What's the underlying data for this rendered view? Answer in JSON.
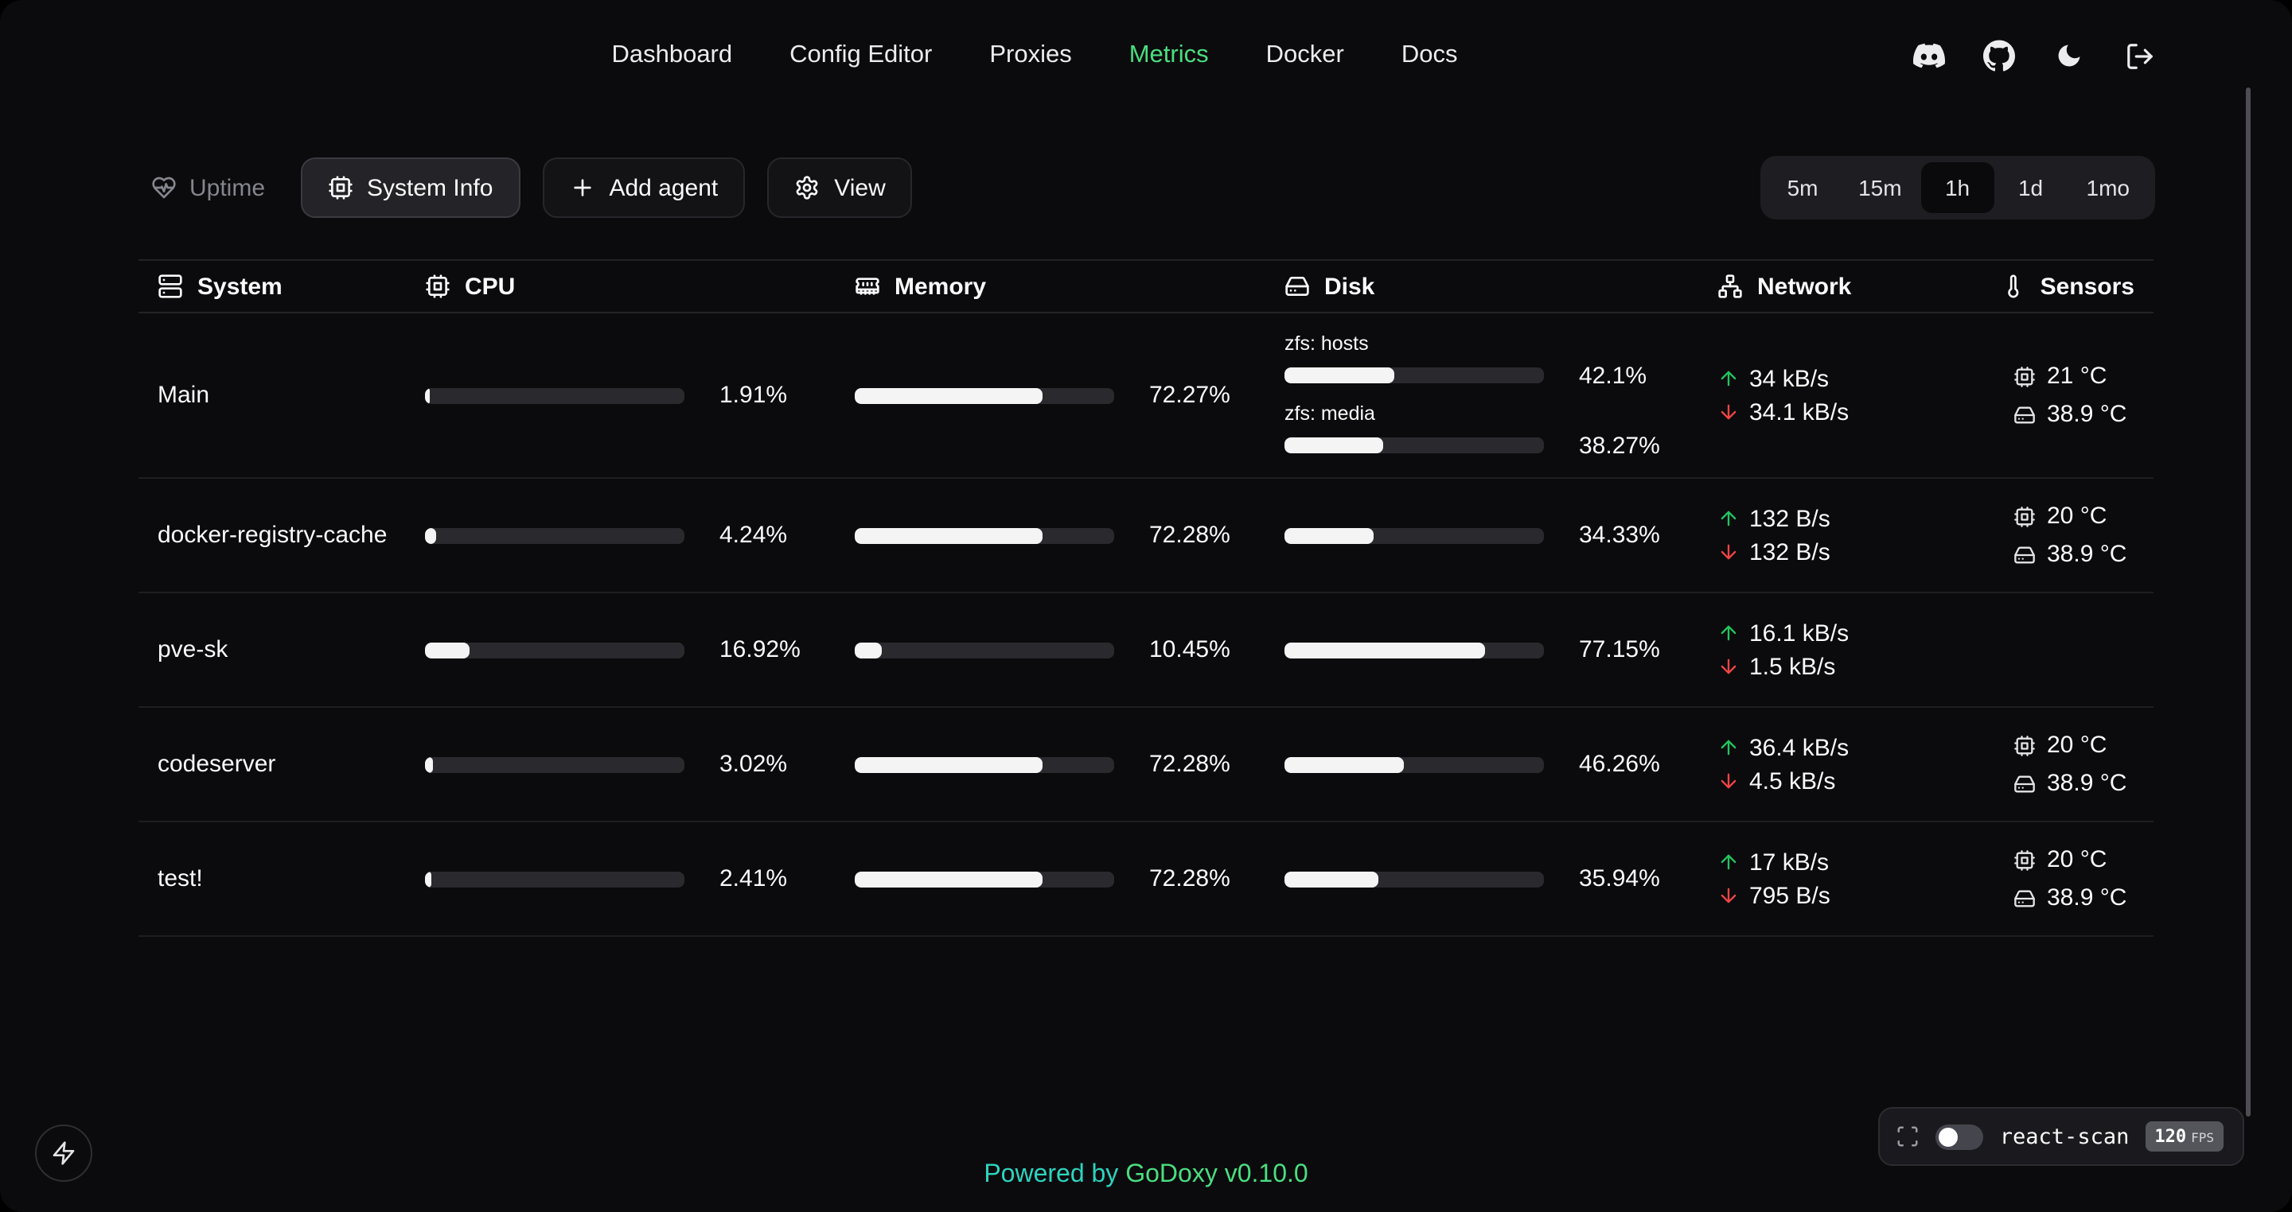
{
  "nav": {
    "items": [
      {
        "label": "Dashboard",
        "active": false
      },
      {
        "label": "Config Editor",
        "active": false
      },
      {
        "label": "Proxies",
        "active": false
      },
      {
        "label": "Metrics",
        "active": true
      },
      {
        "label": "Docker",
        "active": false
      },
      {
        "label": "Docs",
        "active": false
      }
    ],
    "icon_buttons": [
      "discord-icon",
      "github-icon",
      "moon-icon",
      "logout-icon"
    ]
  },
  "toolbar": {
    "uptime": {
      "label": "Uptime",
      "icon": "heart-pulse-icon"
    },
    "buttons": [
      {
        "label": "System Info",
        "icon": "cpu-icon",
        "active": true
      },
      {
        "label": "Add agent",
        "icon": "plus-icon",
        "active": false
      },
      {
        "label": "View",
        "icon": "gear-icon",
        "active": false
      }
    ],
    "time_ranges": {
      "options": [
        "5m",
        "15m",
        "1h",
        "1d",
        "1mo"
      ],
      "selected": "1h"
    }
  },
  "colors": {
    "accent_green": "#4ade80",
    "net_up_green": "#22c55e",
    "net_down_red": "#ef4444",
    "footer_teal": "#2dd4bf",
    "bar_fill": "#f4f4f5"
  },
  "table": {
    "columns": [
      {
        "label": "System",
        "icon": "server-icon"
      },
      {
        "label": "CPU",
        "icon": "cpu-icon"
      },
      {
        "label": "Memory",
        "icon": "memory-icon"
      },
      {
        "label": "Disk",
        "icon": "hard-drive-icon"
      },
      {
        "label": "Network",
        "icon": "network-icon"
      },
      {
        "label": "Sensors",
        "icon": "thermometer-icon"
      }
    ],
    "rows": [
      {
        "system": "Main",
        "cpu": {
          "percent": 1.91,
          "label": "1.91%"
        },
        "memory": {
          "percent": 72.27,
          "label": "72.27%"
        },
        "disks": [
          {
            "name": "zfs: hosts",
            "percent": 42.1,
            "label": "42.1%"
          },
          {
            "name": "zfs: media",
            "percent": 38.27,
            "label": "38.27%"
          }
        ],
        "network": {
          "up": "34 kB/s",
          "down": "34.1 kB/s"
        },
        "sensors": [
          {
            "icon": "cpu-icon",
            "value": "21 °C"
          },
          {
            "icon": "hard-drive-icon",
            "value": "38.9 °C"
          }
        ]
      },
      {
        "system": "docker-registry-cache",
        "cpu": {
          "percent": 4.24,
          "label": "4.24%"
        },
        "memory": {
          "percent": 72.28,
          "label": "72.28%"
        },
        "disks": [
          {
            "name": "",
            "percent": 34.33,
            "label": "34.33%"
          }
        ],
        "network": {
          "up": "132 B/s",
          "down": "132 B/s"
        },
        "sensors": [
          {
            "icon": "cpu-icon",
            "value": "20 °C"
          },
          {
            "icon": "hard-drive-icon",
            "value": "38.9 °C"
          }
        ]
      },
      {
        "system": "pve-sk",
        "cpu": {
          "percent": 16.92,
          "label": "16.92%"
        },
        "memory": {
          "percent": 10.45,
          "label": "10.45%"
        },
        "disks": [
          {
            "name": "",
            "percent": 77.15,
            "label": "77.15%"
          }
        ],
        "network": {
          "up": "16.1 kB/s",
          "down": "1.5 kB/s"
        },
        "sensors": []
      },
      {
        "system": "codeserver",
        "cpu": {
          "percent": 3.02,
          "label": "3.02%"
        },
        "memory": {
          "percent": 72.28,
          "label": "72.28%"
        },
        "disks": [
          {
            "name": "",
            "percent": 46.26,
            "label": "46.26%"
          }
        ],
        "network": {
          "up": "36.4 kB/s",
          "down": "4.5 kB/s"
        },
        "sensors": [
          {
            "icon": "cpu-icon",
            "value": "20 °C"
          },
          {
            "icon": "hard-drive-icon",
            "value": "38.9 °C"
          }
        ]
      },
      {
        "system": "test!",
        "cpu": {
          "percent": 2.41,
          "label": "2.41%"
        },
        "memory": {
          "percent": 72.28,
          "label": "72.28%"
        },
        "disks": [
          {
            "name": "",
            "percent": 35.94,
            "label": "35.94%"
          }
        ],
        "network": {
          "up": "17 kB/s",
          "down": "795 B/s"
        },
        "sensors": [
          {
            "icon": "cpu-icon",
            "value": "20 °C"
          },
          {
            "icon": "hard-drive-icon",
            "value": "38.9 °C"
          }
        ]
      }
    ]
  },
  "footer": {
    "powered_by": "Powered by",
    "brand": "GoDoxy",
    "version": "v0.10.0"
  },
  "react_scan": {
    "label": "react-scan",
    "fps_value": "120",
    "fps_unit": "FPS",
    "toggle_on": false
  }
}
